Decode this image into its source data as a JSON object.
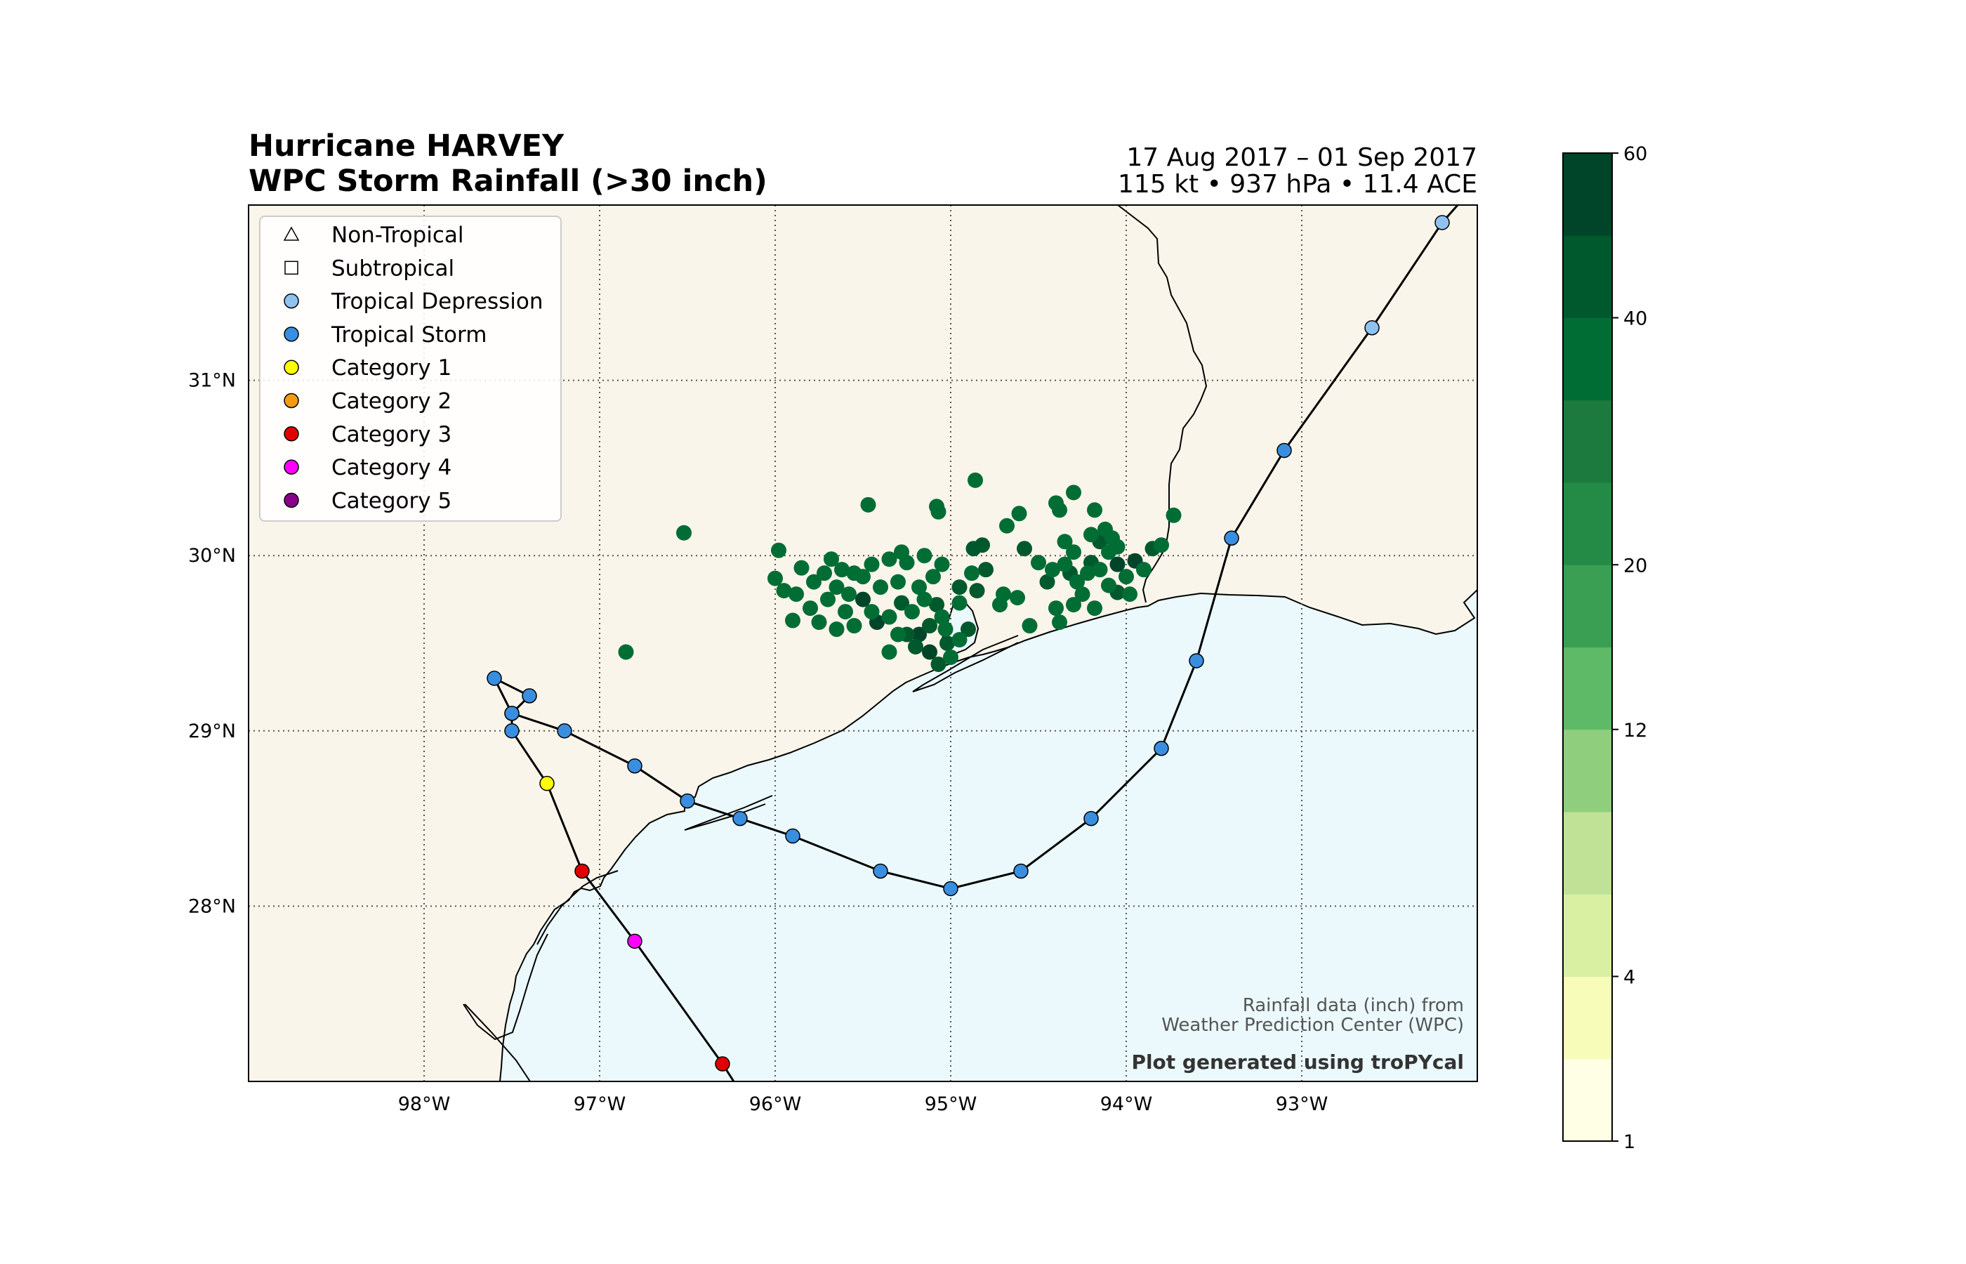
{
  "title": {
    "line1": "Hurricane HARVEY",
    "line2": "WPC Storm Rainfall (>30 inch)",
    "dates": "17 Aug 2017 – 01 Sep 2017",
    "stats": "115 kt • 937 hPa • 11.4 ACE"
  },
  "map": {
    "lon_range": [
      -99.0,
      -92.0
    ],
    "lat_range": [
      27.0,
      32.0
    ],
    "lon_ticks": [
      {
        "value": -98,
        "label": "98°W"
      },
      {
        "value": -97,
        "label": "97°W"
      },
      {
        "value": -96,
        "label": "96°W"
      },
      {
        "value": -95,
        "label": "95°W"
      },
      {
        "value": -94,
        "label": "94°W"
      },
      {
        "value": -93,
        "label": "93°W"
      }
    ],
    "lat_ticks": [
      {
        "value": 28,
        "label": "28°N"
      },
      {
        "value": 29,
        "label": "29°N"
      },
      {
        "value": 30,
        "label": "30°N"
      },
      {
        "value": 31,
        "label": "31°N"
      }
    ],
    "land_color": "#faf5ea",
    "ocean_color": "#ebf9fc",
    "gridlines": "dotted"
  },
  "legend": {
    "placement": "top-left",
    "items": [
      {
        "label": "Non-Tropical",
        "marker": "triangle",
        "color": "#ffffff"
      },
      {
        "label": "Subtropical",
        "marker": "square",
        "color": "#ffffff"
      },
      {
        "label": "Tropical Depression",
        "marker": "circle",
        "color": "#8fc2f0"
      },
      {
        "label": "Tropical Storm",
        "marker": "circle",
        "color": "#3a8ee0"
      },
      {
        "label": "Category 1",
        "marker": "circle",
        "color": "#ffff00"
      },
      {
        "label": "Category 2",
        "marker": "circle",
        "color": "#f39c12"
      },
      {
        "label": "Category 3",
        "marker": "circle",
        "color": "#e00000"
      },
      {
        "label": "Category 4",
        "marker": "circle",
        "color": "#ff00ff"
      },
      {
        "label": "Category 5",
        "marker": "circle",
        "color": "#8b008b"
      }
    ]
  },
  "track": [
    {
      "lon": -96.3,
      "lat": 27.1,
      "category": "Category 3"
    },
    {
      "lon": -96.8,
      "lat": 27.8,
      "category": "Category 4"
    },
    {
      "lon": -97.1,
      "lat": 28.2,
      "category": "Category 3"
    },
    {
      "lon": -97.3,
      "lat": 28.7,
      "category": "Category 1"
    },
    {
      "lon": -97.5,
      "lat": 29.0,
      "category": "Tropical Storm"
    },
    {
      "lon": -97.5,
      "lat": 29.1,
      "category": "Tropical Storm"
    },
    {
      "lon": -97.6,
      "lat": 29.3,
      "category": "Tropical Storm"
    },
    {
      "lon": -97.4,
      "lat": 29.2,
      "category": "Tropical Storm"
    },
    {
      "lon": -97.5,
      "lat": 29.1,
      "category": "Tropical Storm"
    },
    {
      "lon": -97.2,
      "lat": 29.0,
      "category": "Tropical Storm"
    },
    {
      "lon": -96.8,
      "lat": 28.8,
      "category": "Tropical Storm"
    },
    {
      "lon": -96.5,
      "lat": 28.6,
      "category": "Tropical Storm"
    },
    {
      "lon": -96.2,
      "lat": 28.5,
      "category": "Tropical Storm"
    },
    {
      "lon": -95.9,
      "lat": 28.4,
      "category": "Tropical Storm"
    },
    {
      "lon": -95.4,
      "lat": 28.2,
      "category": "Tropical Storm"
    },
    {
      "lon": -95.0,
      "lat": 28.1,
      "category": "Tropical Storm"
    },
    {
      "lon": -94.6,
      "lat": 28.2,
      "category": "Tropical Storm"
    },
    {
      "lon": -94.2,
      "lat": 28.5,
      "category": "Tropical Storm"
    },
    {
      "lon": -93.8,
      "lat": 28.9,
      "category": "Tropical Storm"
    },
    {
      "lon": -93.6,
      "lat": 29.4,
      "category": "Tropical Storm"
    },
    {
      "lon": -93.4,
      "lat": 30.1,
      "category": "Tropical Storm"
    },
    {
      "lon": -93.1,
      "lat": 30.6,
      "category": "Tropical Storm"
    },
    {
      "lon": -92.6,
      "lat": 31.3,
      "category": "Tropical Depression"
    },
    {
      "lon": -92.2,
      "lat": 31.9,
      "category": "Tropical Depression"
    }
  ],
  "rainfall": {
    "units": "inch",
    "threshold": 30,
    "colorbar": {
      "levels": [
        1,
        2,
        4,
        6,
        8,
        12,
        16,
        20,
        24,
        30,
        40,
        50,
        60
      ],
      "tick_values": [
        1,
        4,
        12,
        20,
        40,
        60
      ],
      "tick_labels": [
        "1",
        "4",
        "12",
        "20",
        "40",
        "60"
      ],
      "colors": [
        "#ffffe5",
        "#f7fcb9",
        "#d9f0a3",
        "#bfe296",
        "#8fce7d",
        "#5eba67",
        "#3a9f52",
        "#238b45",
        "#1c7a3e",
        "#006d35",
        "#00592c",
        "#004529"
      ]
    },
    "points": [
      {
        "lon": -95.42,
        "lat": 29.62,
        "value": 60.6
      },
      {
        "lon": -95.18,
        "lat": 29.55,
        "value": 52.0
      },
      {
        "lon": -95.12,
        "lat": 29.45,
        "value": 51.0
      },
      {
        "lon": -95.2,
        "lat": 29.48,
        "value": 49.0
      },
      {
        "lon": -95.07,
        "lat": 29.38,
        "value": 48.5
      },
      {
        "lon": -95.02,
        "lat": 29.5,
        "value": 47.0
      },
      {
        "lon": -95.12,
        "lat": 29.6,
        "value": 46.0
      },
      {
        "lon": -95.25,
        "lat": 29.55,
        "value": 45.0
      },
      {
        "lon": -95.08,
        "lat": 29.72,
        "value": 44.0
      },
      {
        "lon": -94.9,
        "lat": 29.58,
        "value": 42.0
      },
      {
        "lon": -95.28,
        "lat": 29.73,
        "value": 41.0
      },
      {
        "lon": -95.5,
        "lat": 29.75,
        "value": 50.5
      },
      {
        "lon": -93.95,
        "lat": 29.97,
        "value": 55.0
      },
      {
        "lon": -94.05,
        "lat": 29.95,
        "value": 52.0
      },
      {
        "lon": -94.2,
        "lat": 29.96,
        "value": 49.0
      },
      {
        "lon": -94.32,
        "lat": 29.9,
        "value": 45.0
      },
      {
        "lon": -94.45,
        "lat": 29.85,
        "value": 43.0
      },
      {
        "lon": -93.85,
        "lat": 30.04,
        "value": 41.0
      },
      {
        "lon": -94.15,
        "lat": 30.08,
        "value": 44.0
      },
      {
        "lon": -94.82,
        "lat": 30.06,
        "value": 42.0
      },
      {
        "lon": -94.87,
        "lat": 30.04,
        "value": 40.5
      },
      {
        "lon": -94.8,
        "lat": 29.92,
        "value": 40.0
      },
      {
        "lon": -94.58,
        "lat": 30.04,
        "value": 41.5
      },
      {
        "lon": -94.95,
        "lat": 29.82,
        "value": 41.0
      },
      {
        "lon": -94.85,
        "lat": 29.8,
        "value": 40.0
      },
      {
        "lon": -94.05,
        "lat": 29.79,
        "value": 40.8
      },
      {
        "lon": -94.1,
        "lat": 29.83,
        "value": 38.0
      },
      {
        "lon": -96.85,
        "lat": 29.45,
        "value": 34.0
      },
      {
        "lon": -96.52,
        "lat": 30.13,
        "value": 33.0
      },
      {
        "lon": -95.47,
        "lat": 30.29,
        "value": 32.0
      },
      {
        "lon": -95.08,
        "lat": 30.28,
        "value": 33.0
      },
      {
        "lon": -95.07,
        "lat": 30.25,
        "value": 32.0
      },
      {
        "lon": -94.86,
        "lat": 30.43,
        "value": 33.0
      },
      {
        "lon": -94.68,
        "lat": 30.17,
        "value": 32.0
      },
      {
        "lon": -94.61,
        "lat": 30.24,
        "value": 33.0
      },
      {
        "lon": -94.3,
        "lat": 30.36,
        "value": 32.0
      },
      {
        "lon": -94.4,
        "lat": 30.3,
        "value": 33.0
      },
      {
        "lon": -94.38,
        "lat": 30.26,
        "value": 34.0
      },
      {
        "lon": -94.18,
        "lat": 30.26,
        "value": 33.0
      },
      {
        "lon": -93.73,
        "lat": 30.23,
        "value": 32.0
      },
      {
        "lon": -95.98,
        "lat": 30.03,
        "value": 33.0
      },
      {
        "lon": -96.0,
        "lat": 29.87,
        "value": 34.0
      },
      {
        "lon": -95.85,
        "lat": 29.93,
        "value": 33.0
      },
      {
        "lon": -95.72,
        "lat": 29.9,
        "value": 34.0
      },
      {
        "lon": -95.65,
        "lat": 29.82,
        "value": 35.0
      },
      {
        "lon": -95.55,
        "lat": 29.9,
        "value": 34.0
      },
      {
        "lon": -95.45,
        "lat": 29.95,
        "value": 35.0
      },
      {
        "lon": -95.35,
        "lat": 29.98,
        "value": 34.0
      },
      {
        "lon": -95.25,
        "lat": 29.96,
        "value": 36.0
      },
      {
        "lon": -95.15,
        "lat": 30.0,
        "value": 35.0
      },
      {
        "lon": -95.05,
        "lat": 29.95,
        "value": 34.0
      },
      {
        "lon": -95.6,
        "lat": 29.68,
        "value": 36.0
      },
      {
        "lon": -95.7,
        "lat": 29.75,
        "value": 35.0
      },
      {
        "lon": -95.8,
        "lat": 29.7,
        "value": 34.0
      },
      {
        "lon": -95.9,
        "lat": 29.63,
        "value": 33.0
      },
      {
        "lon": -95.88,
        "lat": 29.78,
        "value": 34.0
      },
      {
        "lon": -95.75,
        "lat": 29.62,
        "value": 35.0
      },
      {
        "lon": -95.65,
        "lat": 29.58,
        "value": 36.0
      },
      {
        "lon": -95.55,
        "lat": 29.6,
        "value": 35.0
      },
      {
        "lon": -95.45,
        "lat": 29.68,
        "value": 38.0
      },
      {
        "lon": -95.35,
        "lat": 29.65,
        "value": 37.0
      },
      {
        "lon": -95.3,
        "lat": 29.85,
        "value": 36.0
      },
      {
        "lon": -95.4,
        "lat": 29.82,
        "value": 37.0
      },
      {
        "lon": -95.5,
        "lat": 29.88,
        "value": 35.0
      },
      {
        "lon": -95.62,
        "lat": 29.92,
        "value": 34.0
      },
      {
        "lon": -95.18,
        "lat": 29.82,
        "value": 38.0
      },
      {
        "lon": -95.22,
        "lat": 29.68,
        "value": 39.0
      },
      {
        "lon": -95.15,
        "lat": 29.75,
        "value": 38.0
      },
      {
        "lon": -95.05,
        "lat": 29.65,
        "value": 37.0
      },
      {
        "lon": -95.35,
        "lat": 29.45,
        "value": 36.0
      },
      {
        "lon": -95.3,
        "lat": 29.55,
        "value": 37.0
      },
      {
        "lon": -95.0,
        "lat": 29.42,
        "value": 36.0
      },
      {
        "lon": -94.95,
        "lat": 29.52,
        "value": 35.0
      },
      {
        "lon": -95.03,
        "lat": 29.58,
        "value": 37.0
      },
      {
        "lon": -94.95,
        "lat": 29.73,
        "value": 36.0
      },
      {
        "lon": -94.88,
        "lat": 29.9,
        "value": 35.0
      },
      {
        "lon": -94.7,
        "lat": 29.78,
        "value": 34.0
      },
      {
        "lon": -94.72,
        "lat": 29.72,
        "value": 33.0
      },
      {
        "lon": -94.62,
        "lat": 29.76,
        "value": 34.0
      },
      {
        "lon": -94.55,
        "lat": 29.6,
        "value": 33.0
      },
      {
        "lon": -94.4,
        "lat": 29.7,
        "value": 34.0
      },
      {
        "lon": -94.38,
        "lat": 29.62,
        "value": 33.0
      },
      {
        "lon": -94.5,
        "lat": 29.96,
        "value": 35.0
      },
      {
        "lon": -94.42,
        "lat": 29.92,
        "value": 36.0
      },
      {
        "lon": -94.35,
        "lat": 30.08,
        "value": 35.0
      },
      {
        "lon": -94.3,
        "lat": 30.02,
        "value": 36.0
      },
      {
        "lon": -94.28,
        "lat": 29.85,
        "value": 37.0
      },
      {
        "lon": -94.25,
        "lat": 29.78,
        "value": 35.0
      },
      {
        "lon": -94.2,
        "lat": 30.12,
        "value": 36.0
      },
      {
        "lon": -94.22,
        "lat": 29.9,
        "value": 38.0
      },
      {
        "lon": -94.15,
        "lat": 29.92,
        "value": 37.0
      },
      {
        "lon": -94.1,
        "lat": 30.02,
        "value": 36.0
      },
      {
        "lon": -94.12,
        "lat": 30.15,
        "value": 35.0
      },
      {
        "lon": -94.08,
        "lat": 30.1,
        "value": 37.0
      },
      {
        "lon": -94.05,
        "lat": 30.05,
        "value": 36.0
      },
      {
        "lon": -94.0,
        "lat": 29.88,
        "value": 37.0
      },
      {
        "lon": -93.9,
        "lat": 29.92,
        "value": 36.0
      },
      {
        "lon": -93.8,
        "lat": 30.06,
        "value": 34.0
      },
      {
        "lon": -94.18,
        "lat": 29.7,
        "value": 33.0
      },
      {
        "lon": -94.3,
        "lat": 29.72,
        "value": 34.0
      },
      {
        "lon": -94.35,
        "lat": 29.95,
        "value": 35.0
      },
      {
        "lon": -93.98,
        "lat": 29.78,
        "value": 33.0
      },
      {
        "lon": -95.95,
        "lat": 29.8,
        "value": 33.0
      },
      {
        "lon": -95.68,
        "lat": 29.98,
        "value": 34.0
      },
      {
        "lon": -95.28,
        "lat": 30.02,
        "value": 33.0
      },
      {
        "lon": -95.1,
        "lat": 29.88,
        "value": 35.0
      },
      {
        "lon": -95.58,
        "lat": 29.78,
        "value": 36.0
      },
      {
        "lon": -95.78,
        "lat": 29.85,
        "value": 35.0
      }
    ]
  },
  "credits": {
    "source_line1": "Rainfall data (inch) from",
    "source_line2": "Weather Prediction Center (WPC)",
    "generated": "Plot generated using troPYcal"
  }
}
